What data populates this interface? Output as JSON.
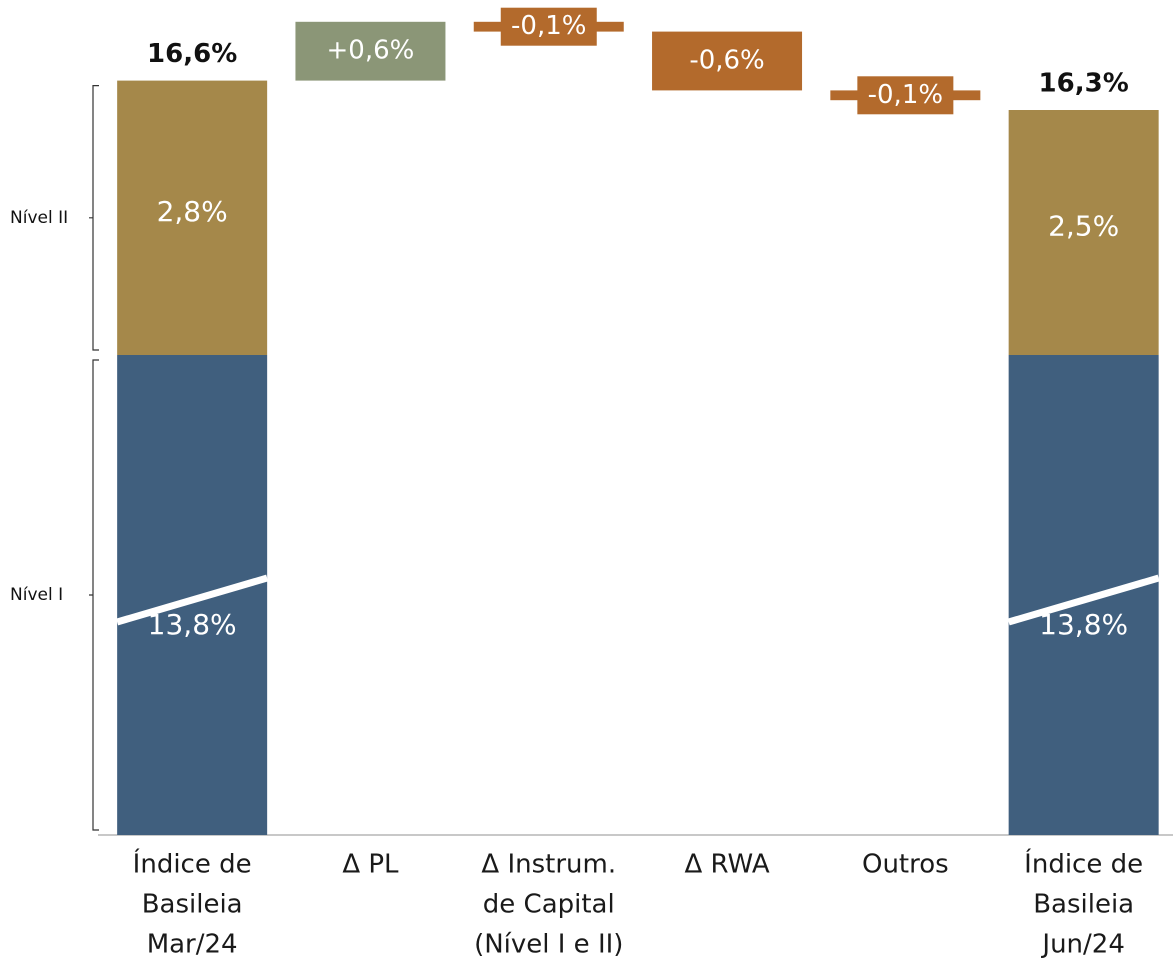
{
  "chart_data": {
    "type": "waterfall",
    "categories": [
      [
        "Índice de",
        "Basileia",
        "Mar/24"
      ],
      [
        "Δ PL"
      ],
      [
        "Δ Instrum.",
        "de Capital",
        "(Nível I e II)"
      ],
      [
        "Δ RWA"
      ],
      [
        "Outros"
      ],
      [
        "Índice de",
        "Basileia",
        "Jun/24"
      ]
    ],
    "series": [
      {
        "name": "Nível I",
        "color": "#405f7e",
        "values": [
          13.8,
          null,
          null,
          null,
          null,
          13.8
        ],
        "value_labels": [
          "13,8%",
          null,
          null,
          null,
          null,
          "13,8%"
        ]
      },
      {
        "name": "Nível II",
        "color": "#a5884a",
        "values": [
          2.8,
          null,
          null,
          null,
          null,
          2.5
        ],
        "value_labels": [
          "2,8%",
          null,
          null,
          null,
          null,
          "2,5%"
        ]
      }
    ],
    "totals": {
      "values": [
        16.6,
        null,
        null,
        null,
        null,
        16.3
      ],
      "value_labels": [
        "16,6%",
        null,
        null,
        null,
        null,
        "16,3%"
      ]
    },
    "deltas": {
      "values": [
        null,
        0.6,
        -0.1,
        -0.6,
        -0.1,
        null
      ],
      "value_labels": [
        null,
        "+0,6%",
        "-0,1%",
        "-0,6%",
        "-0,1%",
        null
      ],
      "positive_color": "#8b9677",
      "negative_color": "#b36a2c"
    }
  }
}
